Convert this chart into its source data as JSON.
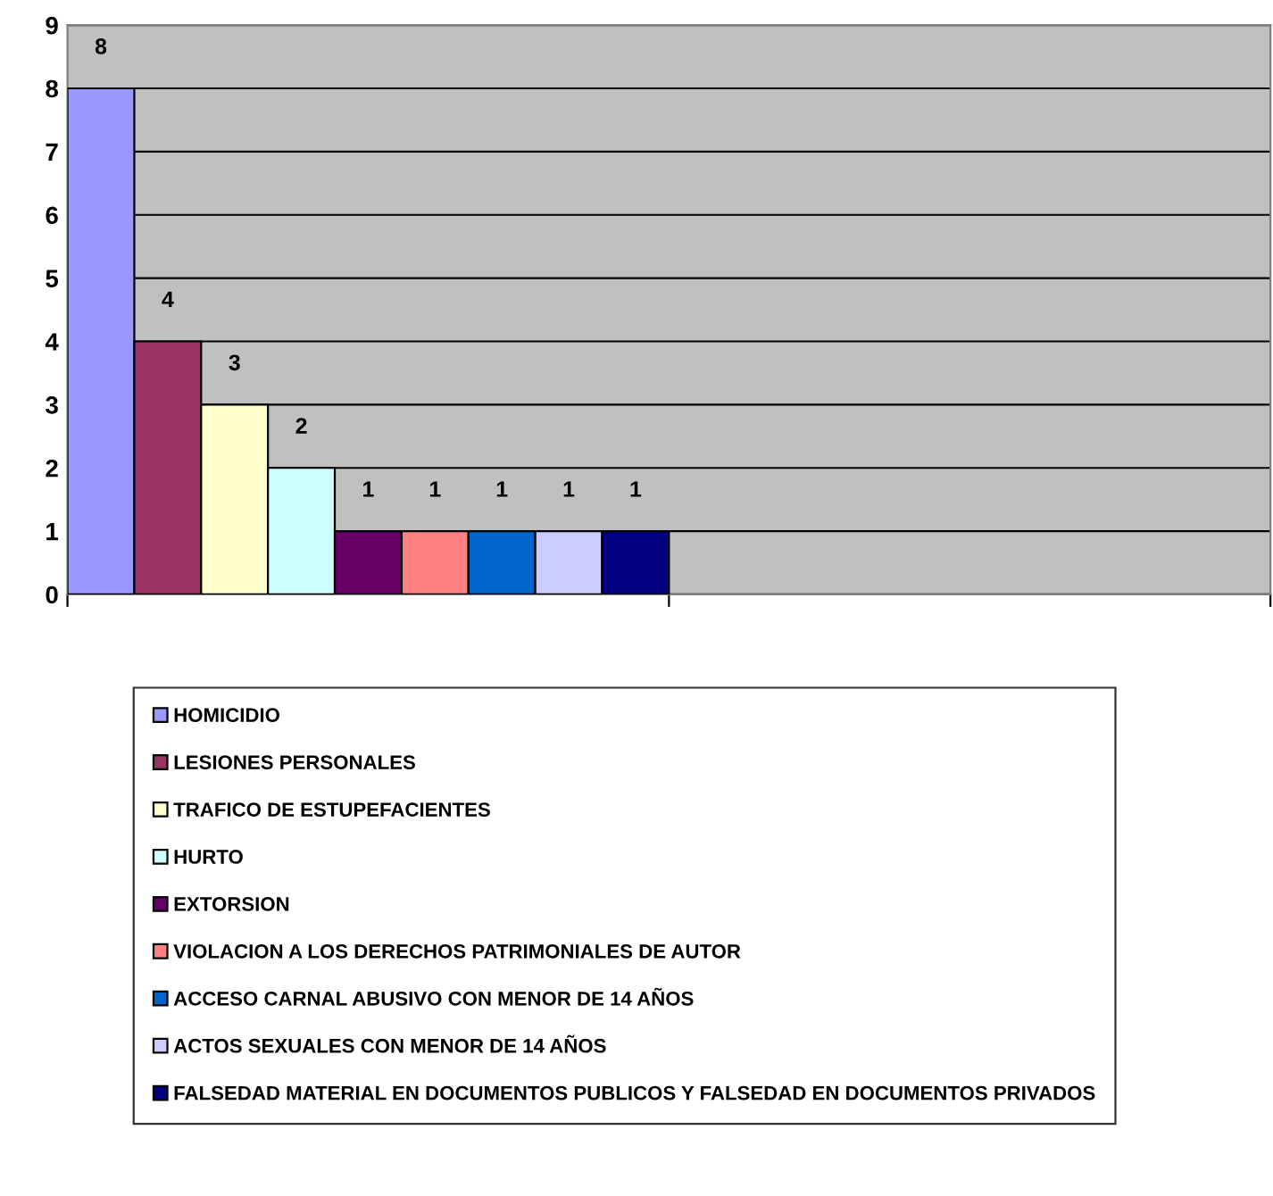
{
  "chart_data": {
    "type": "bar",
    "categories": [
      null,
      null
    ],
    "series": [
      {
        "name": "HOMICIDIO",
        "color": "#9999ff",
        "values": [
          8,
          null
        ]
      },
      {
        "name": "LESIONES PERSONALES",
        "color": "#993366",
        "values": [
          4,
          null
        ]
      },
      {
        "name": "TRAFICO DE ESTUPEFACIENTES",
        "color": "#ffffcc",
        "values": [
          3,
          null
        ]
      },
      {
        "name": "HURTO",
        "color": "#ccffff",
        "values": [
          2,
          null
        ]
      },
      {
        "name": "EXTORSION",
        "color": "#660066",
        "values": [
          1,
          null
        ]
      },
      {
        "name": "VIOLACION A LOS DERECHOS PATRIMONIALES DE AUTOR",
        "color": "#ff8080",
        "values": [
          1,
          null
        ]
      },
      {
        "name": "ACCESO CARNAL ABUSIVO CON MENOR DE 14 AÑOS",
        "color": "#0066cc",
        "values": [
          1,
          null
        ]
      },
      {
        "name": "ACTOS SEXUALES CON MENOR DE 14 AÑOS",
        "color": "#ccccff",
        "values": [
          1,
          null
        ]
      },
      {
        "name": "FALSEDAD MATERIAL EN DOCUMENTOS PUBLICOS Y FALSEDAD EN DOCUMENTOS PRIVADOS",
        "color": "#000080",
        "values": [
          1,
          null
        ]
      }
    ],
    "ylim": [
      0,
      9
    ],
    "yticks": [
      0,
      1,
      2,
      3,
      4,
      5,
      6,
      7,
      8,
      9
    ],
    "grid": "y",
    "legend": "bottom",
    "data_labels": true
  }
}
